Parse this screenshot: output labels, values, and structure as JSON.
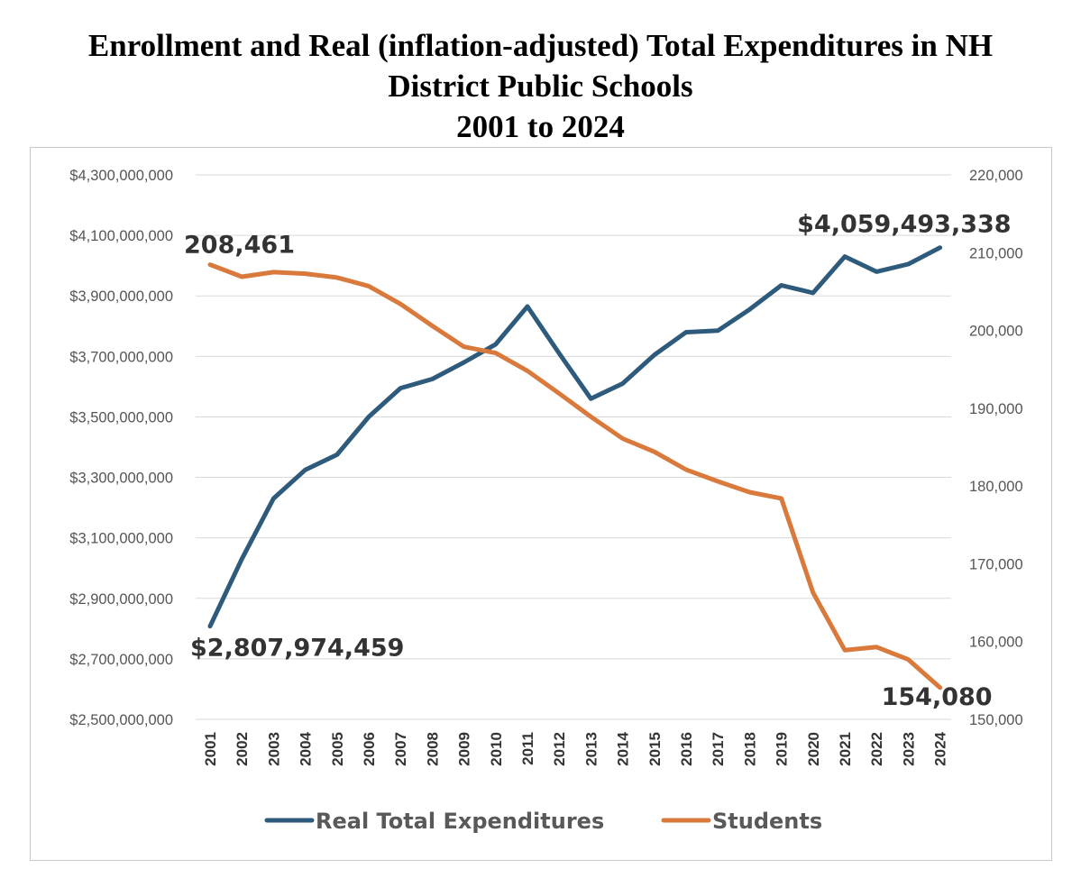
{
  "title_lines": [
    "Enrollment and Real (inflation-adjusted) Total Expenditures in NH",
    "District Public Schools",
    "2001 to 2024"
  ],
  "colors": {
    "expenditures": "#2e5a7c",
    "students": "#d97a3c",
    "grid": "#d9d9d9"
  },
  "chart_data": {
    "type": "line",
    "title": "Enrollment and Real (inflation-adjusted) Total Expenditures in NH District Public Schools 2001 to 2024",
    "categories": [
      "2001",
      "2002",
      "2003",
      "2004",
      "2005",
      "2006",
      "2007",
      "2008",
      "2009",
      "2010",
      "2011",
      "2012",
      "2013",
      "2014",
      "2015",
      "2016",
      "2017",
      "2018",
      "2019",
      "2020",
      "2021",
      "2022",
      "2023",
      "2024"
    ],
    "series": [
      {
        "name": "Real Total Expenditures",
        "axis": "left",
        "values": [
          2807974459,
          3030000000,
          3230000000,
          3325000000,
          3375000000,
          3500000000,
          3595000000,
          3625000000,
          3680000000,
          3740000000,
          3865000000,
          3710000000,
          3560000000,
          3610000000,
          3705000000,
          3780000000,
          3785000000,
          3855000000,
          3935000000,
          3910000000,
          4030000000,
          3980000000,
          4005000000,
          4059493338
        ]
      },
      {
        "name": "Students",
        "axis": "right",
        "values": [
          208461,
          206900,
          207500,
          207300,
          206800,
          205700,
          203400,
          200600,
          197900,
          197100,
          194800,
          191900,
          188900,
          186100,
          184400,
          182100,
          180600,
          179200,
          178400,
          166300,
          158900,
          159300,
          157700,
          154080
        ]
      }
    ],
    "y_left": {
      "range": [
        2500000000,
        4300000000
      ],
      "ticks": [
        2500000000,
        2700000000,
        2900000000,
        3100000000,
        3300000000,
        3500000000,
        3700000000,
        3900000000,
        4100000000,
        4300000000
      ],
      "tick_labels": [
        "$2,500,000,000",
        "$2,700,000,000",
        "$2,900,000,000",
        "$3,100,000,000",
        "$3,300,000,000",
        "$3,500,000,000",
        "$3,700,000,000",
        "$3,900,000,000",
        "$4,100,000,000",
        "$4,300,000,000"
      ]
    },
    "y_right": {
      "range": [
        150000,
        220000
      ],
      "ticks": [
        150000,
        160000,
        170000,
        180000,
        190000,
        200000,
        210000,
        220000
      ],
      "tick_labels": [
        "150,000",
        "160,000",
        "170,000",
        "180,000",
        "190,000",
        "200,000",
        "210,000",
        "220,000"
      ]
    },
    "data_labels": [
      {
        "series": 0,
        "index": 0,
        "text": "$2,807,974,459"
      },
      {
        "series": 0,
        "index": 23,
        "text": "$4,059,493,338"
      },
      {
        "series": 1,
        "index": 0,
        "text": "208,461"
      },
      {
        "series": 1,
        "index": 23,
        "text": "154,080"
      }
    ],
    "grid": true,
    "legend_position": "bottom"
  }
}
